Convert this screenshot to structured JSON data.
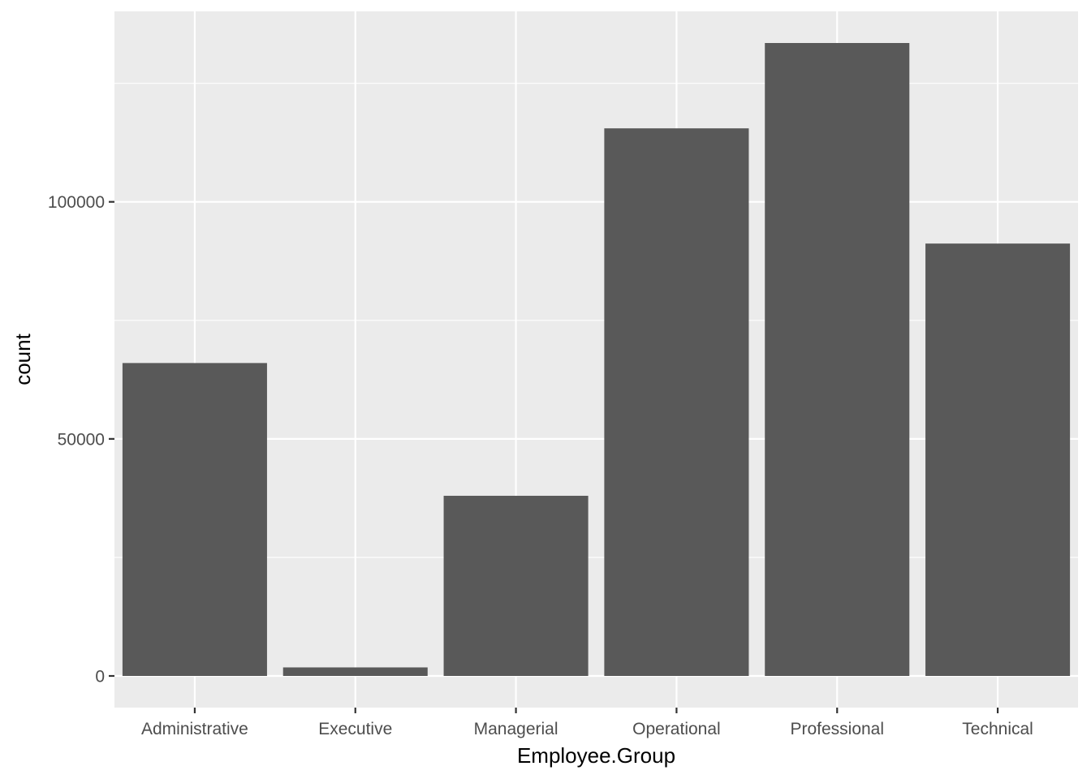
{
  "chart_data": {
    "type": "bar",
    "categories": [
      "Administrative",
      "Executive",
      "Managerial",
      "Operational",
      "Professional",
      "Technical"
    ],
    "values": [
      66000,
      1800,
      38000,
      115500,
      133500,
      91200
    ],
    "xlabel": "Employee.Group",
    "ylabel": "count",
    "ylim": [
      -6675,
      140175
    ],
    "yticks": [
      0,
      50000,
      100000
    ],
    "ytick_labels": [
      "0",
      "50000",
      "100000"
    ],
    "grid": true,
    "legend": "none",
    "colors": {
      "panel": "#ebebeb",
      "grid": "#ffffff",
      "bar": "#595959",
      "tick": "#333333"
    }
  }
}
